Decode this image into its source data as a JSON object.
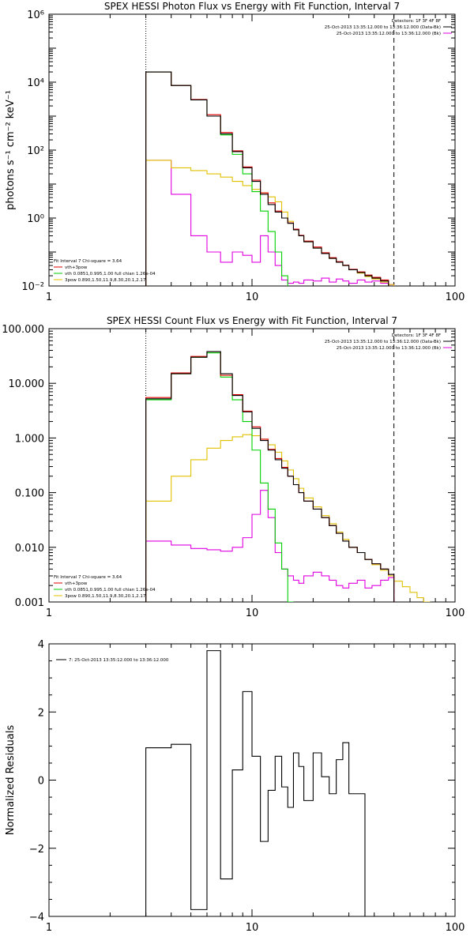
{
  "chart_data": [
    {
      "type": "line",
      "title": "SPEX HESSI Photon Flux vs Energy with Fit Function, Interval 7",
      "ylabel": "photons s⁻¹ cm⁻² keV⁻¹",
      "xlabel": "",
      "x_scale": "log",
      "y_scale": "log",
      "xlim": [
        1,
        100
      ],
      "ylim": [
        0.01,
        1000000
      ],
      "x_ticks": [
        {
          "value": 1,
          "label": "1"
        },
        {
          "value": 10,
          "label": "10"
        },
        {
          "value": 100,
          "label": "100"
        }
      ],
      "y_ticks": [
        {
          "value": 0.01,
          "label": "10⁻²"
        },
        {
          "value": 1,
          "label": "10⁰"
        },
        {
          "value": 100,
          "label": "10²"
        },
        {
          "value": 10000,
          "label": "10⁴"
        },
        {
          "value": 1000000,
          "label": "10⁶"
        }
      ],
      "vlines": [
        {
          "x": 3,
          "style": "dotted"
        },
        {
          "x": 50,
          "style": "dashed"
        }
      ],
      "legend_top_right": [
        {
          "text": "Detectors: 1F 3F 4F 8F",
          "color": ""
        },
        {
          "text": "25-Oct-2013 13:35:12.000 to 13:36:12.000 (Data-Bk)",
          "color": "#000000"
        },
        {
          "text": "25-Oct-2013 13:35:12.000 to 13:36:12.000 (Bk)",
          "color": "#e000e0"
        }
      ],
      "legend_bottom_left": [
        {
          "text": "Fit Interval 7   Chi-square = 3.64",
          "color": ""
        },
        {
          "text": "vth+3pow",
          "color": "#e00000"
        },
        {
          "text": "vth 0.0851,0.995,1.00  full chian 1.26e-04",
          "color": "#00d000"
        },
        {
          "text": "3pow 0.890,1.50,11.9,8.30,20.1,2.17",
          "color": "#e0c000"
        }
      ],
      "bin_edges": [
        3,
        4,
        5,
        6,
        7,
        8,
        9,
        10,
        11,
        12,
        13,
        14,
        15,
        16,
        17,
        18,
        20,
        22,
        24,
        26,
        28,
        30,
        33,
        36,
        39,
        43,
        47,
        50,
        55
      ],
      "series": [
        {
          "name": "Data-Bk",
          "color": "#000000",
          "values": [
            20000,
            8000,
            3000,
            1000,
            300,
            90,
            30,
            12,
            5,
            2.5,
            1.5,
            1.0,
            0.7,
            0.45,
            0.3,
            0.2,
            0.13,
            0.09,
            0.065,
            0.05,
            0.04,
            0.03,
            0.025,
            0.02,
            0.017,
            0.014
          ]
        },
        {
          "name": "vth+3pow",
          "color": "#e00000",
          "values": [
            20000,
            8000,
            3100,
            1100,
            330,
            95,
            32,
            13,
            5.5,
            2.8,
            1.6,
            1.0,
            0.72,
            0.47,
            0.31,
            0.21,
            0.14,
            0.095,
            0.068,
            0.052,
            0.041,
            0.031,
            0.026,
            0.021,
            0.018,
            0.015
          ]
        },
        {
          "name": "vth",
          "color": "#00d000",
          "values": [
            20000,
            8000,
            3000,
            1000,
            280,
            75,
            20,
            6,
            1.6,
            0.4,
            0.1,
            0.02,
            0.005
          ]
        },
        {
          "name": "3pow",
          "color": "#e0c000",
          "values": [
            50,
            30,
            25,
            20,
            16,
            12,
            9,
            7,
            5.5,
            4.2,
            3,
            1.5,
            0.8,
            0.45,
            0.3,
            0.2,
            0.13,
            0.09,
            0.065,
            0.05,
            0.04,
            0.03,
            0.024,
            0.019,
            0.016,
            0.013,
            0.011,
            0.009
          ]
        },
        {
          "name": "Bk",
          "color": "#e000e0",
          "values": [
            50,
            5,
            0.3,
            0.1,
            0.05,
            0.1,
            0.08,
            0.05,
            0.3,
            0.1,
            0.04,
            0.015,
            0.012,
            0.013,
            0.012,
            0.015,
            0.014,
            0.017,
            0.013,
            0.016,
            0.014,
            0.012,
            0.015,
            0.013,
            0.014,
            0.012,
            0.011
          ]
        }
      ]
    },
    {
      "type": "line",
      "title": "SPEX HESSI Count Flux vs Energy with Fit Function, Interval 7",
      "ylabel": "",
      "xlabel": "",
      "x_scale": "log",
      "y_scale": "log",
      "xlim": [
        1,
        100
      ],
      "ylim": [
        0.001,
        100
      ],
      "x_ticks": [
        {
          "value": 1,
          "label": "1"
        },
        {
          "value": 10,
          "label": "10"
        },
        {
          "value": 100,
          "label": "100"
        }
      ],
      "y_ticks": [
        {
          "value": 0.001,
          "label": "0.001"
        },
        {
          "value": 0.01,
          "label": "0.010"
        },
        {
          "value": 0.1,
          "label": "0.100"
        },
        {
          "value": 1,
          "label": "1.000"
        },
        {
          "value": 10,
          "label": "10.000"
        },
        {
          "value": 100,
          "label": "100.000"
        }
      ],
      "vlines": [
        {
          "x": 3,
          "style": "dotted"
        },
        {
          "x": 50,
          "style": "dashed"
        }
      ],
      "legend_top_right": [
        {
          "text": "Detectors: 1F 3F 4F 8F",
          "color": ""
        },
        {
          "text": "25-Oct-2013 13:35:12.000 to 13:36:12.000 (Data-Bk)",
          "color": "#000000"
        },
        {
          "text": "25-Oct-2013 13:35:12.000 to 13:36:12.000 (Bk)",
          "color": "#e000e0"
        }
      ],
      "legend_bottom_left": [
        {
          "text": "Fit Interval 7   Chi-square = 3.64",
          "color": ""
        },
        {
          "text": "vth+3pow",
          "color": "#e00000"
        },
        {
          "text": "vth 0.0851,0.995,1.00  full chian 1.26e-04",
          "color": "#00d000"
        },
        {
          "text": "3pow 0.890,1.50,11.9,8.30,20.1,2.17",
          "color": "#e0c000"
        }
      ],
      "bin_edges": [
        3,
        4,
        5,
        6,
        7,
        8,
        9,
        10,
        11,
        12,
        13,
        14,
        15,
        16,
        17,
        18,
        20,
        22,
        24,
        26,
        28,
        30,
        33,
        36,
        39,
        43,
        47,
        50,
        55,
        60,
        65,
        70,
        75,
        80,
        88
      ],
      "series": [
        {
          "name": "Data-Bk",
          "color": "#000000",
          "values": [
            5.2,
            15,
            30,
            38,
            15,
            6,
            3,
            1.5,
            0.9,
            0.6,
            0.4,
            0.28,
            0.2,
            0.14,
            0.1,
            0.07,
            0.05,
            0.035,
            0.025,
            0.018,
            0.013,
            0.01,
            0.008,
            0.006,
            0.005,
            0.004,
            0.0032
          ]
        },
        {
          "name": "vth+3pow",
          "color": "#e00000",
          "values": [
            5.5,
            15.5,
            31,
            38,
            14,
            6.2,
            3.1,
            1.6,
            0.95,
            0.62,
            0.42,
            0.29,
            0.2,
            0.14,
            0.1,
            0.07,
            0.05,
            0.035,
            0.025,
            0.018,
            0.013,
            0.01,
            0.008,
            0.006,
            0.005,
            0.004,
            0.0032
          ]
        },
        {
          "name": "vth",
          "color": "#00d000",
          "values": [
            5,
            15,
            30,
            36,
            13,
            5,
            2,
            0.6,
            0.15,
            0.05,
            0.012,
            0.004,
            0.001
          ]
        },
        {
          "name": "3pow",
          "color": "#e0c000",
          "values": [
            0.07,
            0.2,
            0.4,
            0.65,
            0.9,
            1.05,
            1.15,
            1.1,
            0.95,
            0.75,
            0.55,
            0.38,
            0.26,
            0.18,
            0.12,
            0.08,
            0.055,
            0.038,
            0.027,
            0.019,
            0.014,
            0.01,
            0.008,
            0.006,
            0.0048,
            0.0038,
            0.003,
            0.0024,
            0.0019,
            0.0015,
            0.0012,
            0.001,
            0.0008,
            0.0006
          ]
        },
        {
          "name": "Bk",
          "color": "#e000e0",
          "values": [
            0.013,
            0.011,
            0.0095,
            0.009,
            0.0085,
            0.01,
            0.015,
            0.04,
            0.11,
            0.035,
            0.008,
            0.004,
            0.003,
            0.0025,
            0.0022,
            0.003,
            0.0035,
            0.003,
            0.0025,
            0.002,
            0.0018,
            0.0022,
            0.0025,
            0.0018,
            0.002,
            0.0025,
            0.0028
          ]
        }
      ]
    },
    {
      "type": "line",
      "title": "",
      "ylabel": "Normalized Residuals",
      "xlabel": "",
      "x_scale": "log",
      "y_scale": "linear",
      "xlim": [
        1,
        100
      ],
      "ylim": [
        -4,
        4
      ],
      "x_ticks": [
        {
          "value": 1,
          "label": "1"
        },
        {
          "value": 10,
          "label": "10"
        },
        {
          "value": 100,
          "label": "100"
        }
      ],
      "y_ticks": [
        {
          "value": -4,
          "label": "−4"
        },
        {
          "value": -2,
          "label": "−2"
        },
        {
          "value": 0,
          "label": "0"
        },
        {
          "value": 2,
          "label": "2"
        },
        {
          "value": 4,
          "label": "4"
        }
      ],
      "legend_top_left": [
        {
          "text": "7: 25-Oct-2013 13:35:12.000 to 13:36:12.000",
          "color": "#000000"
        }
      ],
      "bin_edges": [
        3,
        4,
        5,
        6,
        7,
        8,
        9,
        10,
        11,
        12,
        13,
        14,
        15,
        16,
        17,
        18,
        20,
        22,
        24,
        26,
        28,
        30,
        33,
        36,
        39,
        43,
        47,
        50
      ],
      "series": [
        {
          "name": "7",
          "color": "#000000",
          "values": [
            0.95,
            1.05,
            -3.8,
            3.8,
            -2.9,
            0.3,
            2.6,
            0.7,
            -1.8,
            -0.3,
            0.7,
            -0.2,
            -0.8,
            0.8,
            0.4,
            -0.6,
            0.8,
            0.1,
            -0.4,
            0.6,
            1.1,
            -0.4,
            -0.4
          ]
        }
      ]
    }
  ]
}
